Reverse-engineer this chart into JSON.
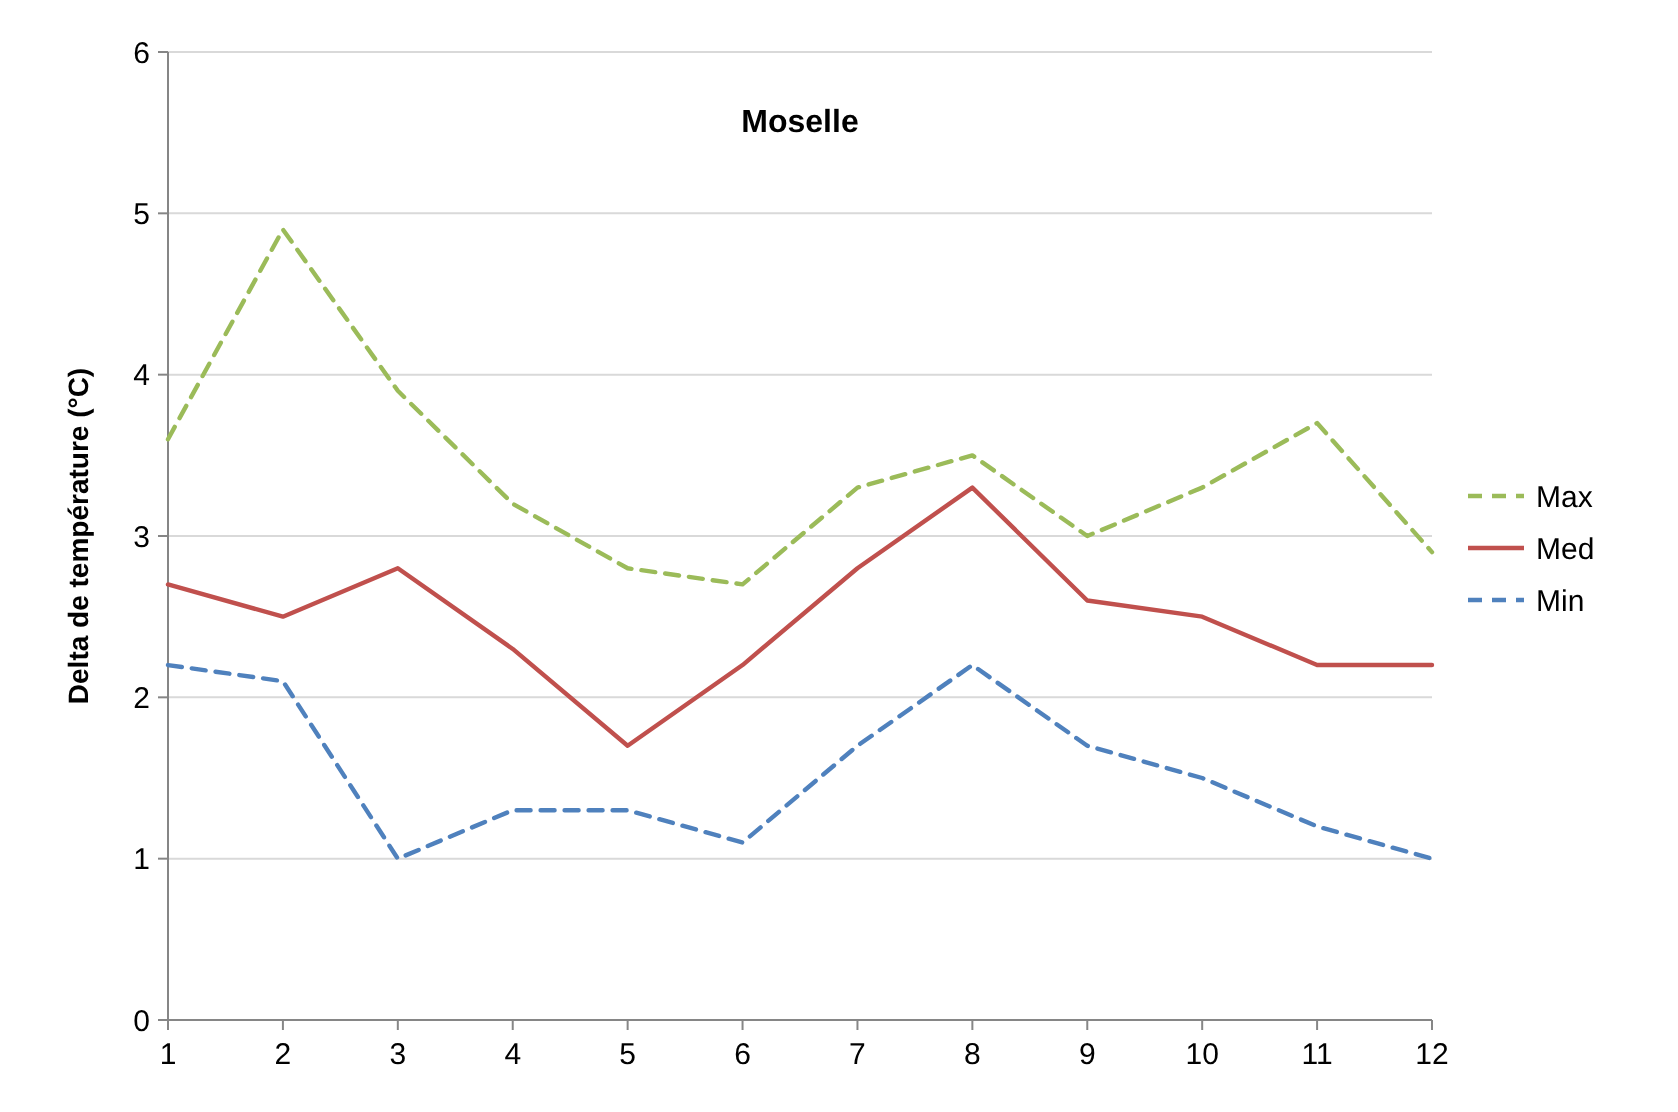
{
  "chart_data": {
    "type": "line",
    "title": "Moselle",
    "ylabel": "Delta de température (°C)",
    "x": [
      1,
      2,
      3,
      4,
      5,
      6,
      7,
      8,
      9,
      10,
      11,
      12
    ],
    "xlim": [
      1,
      12
    ],
    "xticks": [
      1,
      2,
      3,
      4,
      5,
      6,
      7,
      8,
      9,
      10,
      11,
      12
    ],
    "ylim": [
      0,
      6
    ],
    "yticks": [
      0,
      1,
      2,
      3,
      4,
      5,
      6
    ],
    "grid": "y",
    "legend": "right",
    "marker": "none",
    "series": [
      {
        "name": "Max",
        "color": "#9bbb59",
        "line_style": "dashed",
        "values": [
          3.6,
          4.9,
          3.9,
          3.2,
          2.8,
          2.7,
          3.3,
          3.5,
          3.0,
          3.3,
          3.7,
          2.9
        ]
      },
      {
        "name": "Med",
        "color": "#c0504d",
        "line_style": "solid",
        "values": [
          2.7,
          2.5,
          2.8,
          2.3,
          1.7,
          2.2,
          2.8,
          3.3,
          2.6,
          2.5,
          2.2,
          2.2
        ]
      },
      {
        "name": "Min",
        "color": "#4f81bd",
        "line_style": "dashed",
        "values": [
          2.2,
          2.1,
          1.0,
          1.3,
          1.3,
          1.1,
          1.7,
          2.2,
          1.7,
          1.5,
          1.2,
          1.0
        ]
      }
    ]
  }
}
